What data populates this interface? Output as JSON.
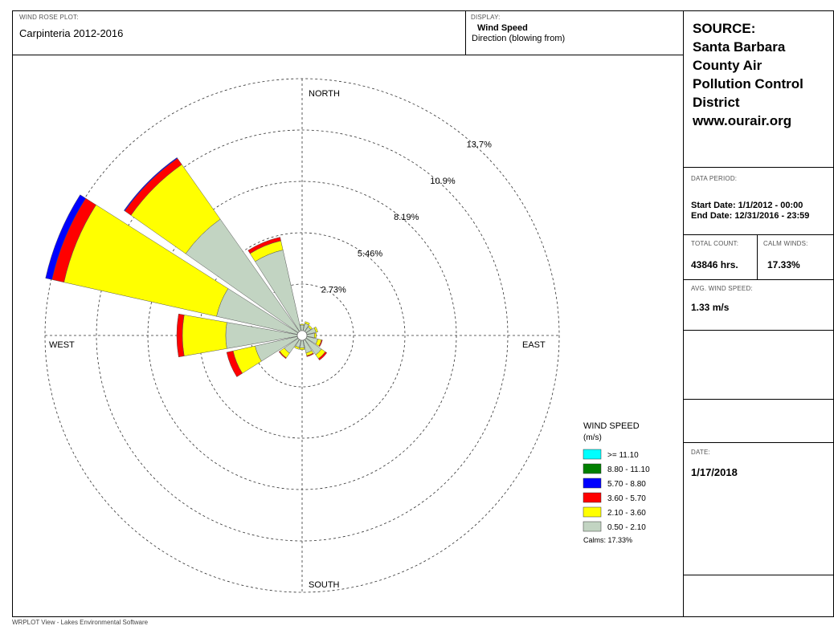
{
  "header": {
    "plot_label": "WIND ROSE PLOT:",
    "plot_title": "Carpinteria 2012-2016",
    "display_label": "DISPLAY:",
    "display_line1": "Wind Speed",
    "display_line2": "Direction (blowing from)"
  },
  "source": {
    "line1": "SOURCE:",
    "line2": "Santa Barbara",
    "line3": "County Air",
    "line4": "Pollution Control",
    "line5": "District",
    "line6": "www.ourair.org"
  },
  "data_period": {
    "label": "DATA PERIOD:",
    "start": "Start Date: 1/1/2012 - 00:00",
    "end": "End Date: 12/31/2016 - 23:59"
  },
  "stats": {
    "total_count_label": "TOTAL COUNT:",
    "total_count": "43846 hrs.",
    "calm_winds_label": "CALM WINDS:",
    "calm_winds": "17.33%",
    "avg_speed_label": "AVG. WIND SPEED:",
    "avg_speed": "1.33 m/s"
  },
  "date": {
    "label": "DATE:",
    "value": "1/17/2018"
  },
  "footer": "WRPLOT View - Lakes Environmental Software",
  "chart_data": {
    "type": "wind-rose",
    "directions": [
      "N",
      "NNE",
      "NE",
      "ENE",
      "E",
      "ESE",
      "SE",
      "SSE",
      "S",
      "SSW",
      "SW",
      "WSW",
      "W",
      "WNW",
      "NW",
      "NNW"
    ],
    "direction_labels": {
      "north": "NORTH",
      "south": "SOUTH",
      "east": "EAST",
      "west": "WEST"
    },
    "ring_labels": [
      "2.73%",
      "5.46%",
      "8.19%",
      "10.9%",
      "13.7%"
    ],
    "ring_values": [
      2.73,
      5.46,
      8.19,
      10.92,
      13.65
    ],
    "max_ring": 13.65,
    "bins": [
      {
        "label": "0.50 - 2.10",
        "color": "#c2d4c2"
      },
      {
        "label": "2.10 - 3.60",
        "color": "#ffff00"
      },
      {
        "label": "3.60 - 5.70",
        "color": "#ff0000"
      },
      {
        "label": "5.70 - 8.80",
        "color": "#0000ff"
      },
      {
        "label": "8.80 - 11.10",
        "color": "#008000"
      },
      {
        "label": ">= 11.10",
        "color": "#00ffff"
      }
    ],
    "frequencies": {
      "N": [
        0.3,
        0.05,
        0,
        0,
        0,
        0
      ],
      "NNE": [
        0.4,
        0.1,
        0,
        0,
        0,
        0
      ],
      "NE": [
        0.3,
        0.1,
        0,
        0,
        0,
        0
      ],
      "ENE": [
        0.5,
        0.1,
        0,
        0,
        0,
        0
      ],
      "E": [
        0.4,
        0.1,
        0,
        0,
        0,
        0
      ],
      "ESE": [
        0.6,
        0.2,
        0.05,
        0,
        0,
        0
      ],
      "SE": [
        1.0,
        0.25,
        0.1,
        0,
        0,
        0
      ],
      "SSE": [
        0.7,
        0.15,
        0.05,
        0,
        0,
        0
      ],
      "S": [
        0.4,
        0.1,
        0,
        0,
        0,
        0
      ],
      "SSW": [
        0.4,
        0.1,
        0,
        0,
        0,
        0
      ],
      "SW": [
        0.9,
        0.3,
        0.05,
        0,
        0,
        0
      ],
      "WSW": [
        2.3,
        1.2,
        0.35,
        0,
        0,
        0
      ],
      "W": [
        3.8,
        2.3,
        0.3,
        0,
        0,
        0
      ],
      "WNW": [
        4.4,
        8.3,
        0.65,
        0.35,
        0,
        0
      ],
      "NW": [
        7.3,
        3.55,
        0.4,
        0.05,
        0,
        0
      ],
      "NNW": [
        4.4,
        0.5,
        0.2,
        0,
        0,
        0
      ]
    },
    "legend": {
      "title": "WIND SPEED",
      "unit": "(m/s)",
      "calms": "Calms: 17.33%"
    }
  }
}
